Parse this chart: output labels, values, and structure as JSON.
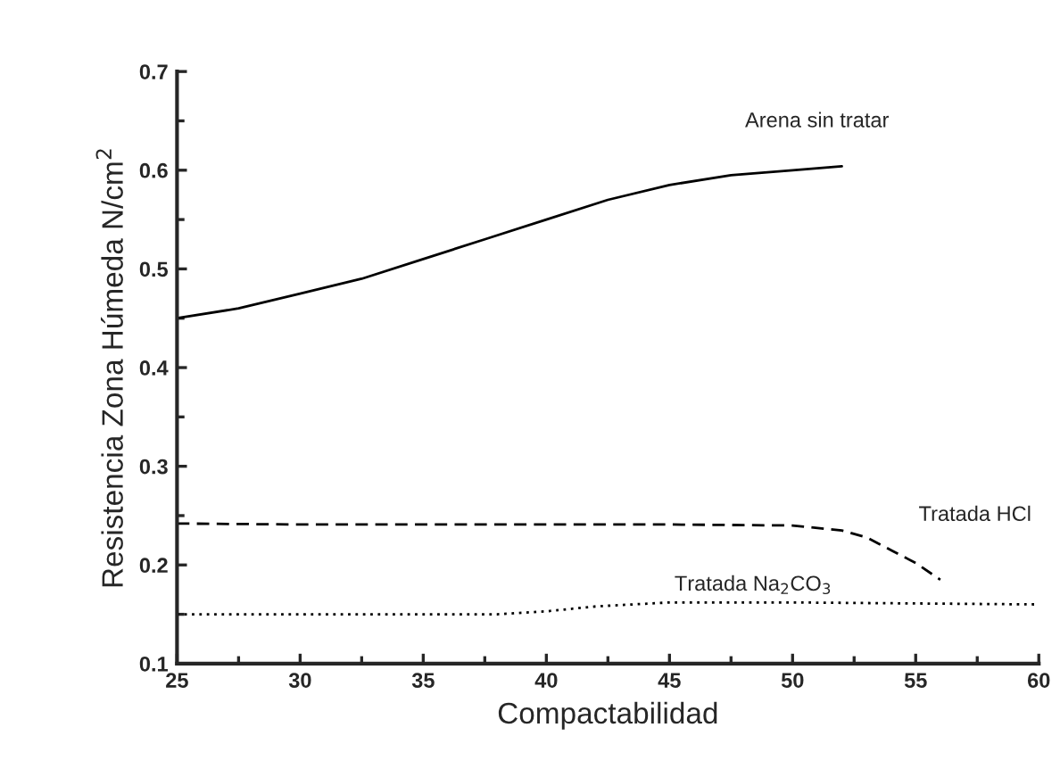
{
  "chart_data": {
    "type": "line",
    "xlabel": "Compactabilidad",
    "ylabel": "Resistencia Zona Húmeda N/cm$^{2}$",
    "xlim": [
      25,
      60
    ],
    "xticks": [
      25,
      30,
      35,
      40,
      45,
      50,
      55,
      60
    ],
    "ylim": [
      0.1,
      0.7
    ],
    "yticks": [
      0.1,
      0.2,
      0.3,
      0.4,
      0.5,
      0.6,
      0.7
    ],
    "grid": false,
    "legend": false,
    "marker": "none",
    "series": [
      {
        "name": "Arena sin tratar",
        "color": "#000000",
        "line_style": "solid",
        "x": [
          25,
          27.5,
          30,
          32.5,
          35,
          37.5,
          40,
          42.5,
          45,
          47.5,
          50,
          52
        ],
        "values": [
          0.45,
          0.46,
          0.475,
          0.49,
          0.51,
          0.53,
          0.55,
          0.57,
          0.585,
          0.595,
          0.6,
          0.604
        ]
      },
      {
        "name": "Tratada HCl",
        "color": "#000000",
        "line_style": "dashed",
        "x": [
          25,
          30,
          35,
          40,
          45,
          50,
          52,
          53,
          54,
          55,
          56
        ],
        "values": [
          0.242,
          0.241,
          0.241,
          0.241,
          0.241,
          0.24,
          0.235,
          0.228,
          0.215,
          0.202,
          0.185
        ]
      },
      {
        "name": "Tratada Na$_{2}$CO$_{3}$",
        "color": "#000000",
        "line_style": "dotted",
        "x": [
          25,
          30,
          35,
          38,
          40,
          42,
          45,
          50,
          55,
          60
        ],
        "values": [
          0.15,
          0.15,
          0.15,
          0.15,
          0.153,
          0.158,
          0.162,
          0.162,
          0.161,
          0.16
        ]
      }
    ]
  }
}
